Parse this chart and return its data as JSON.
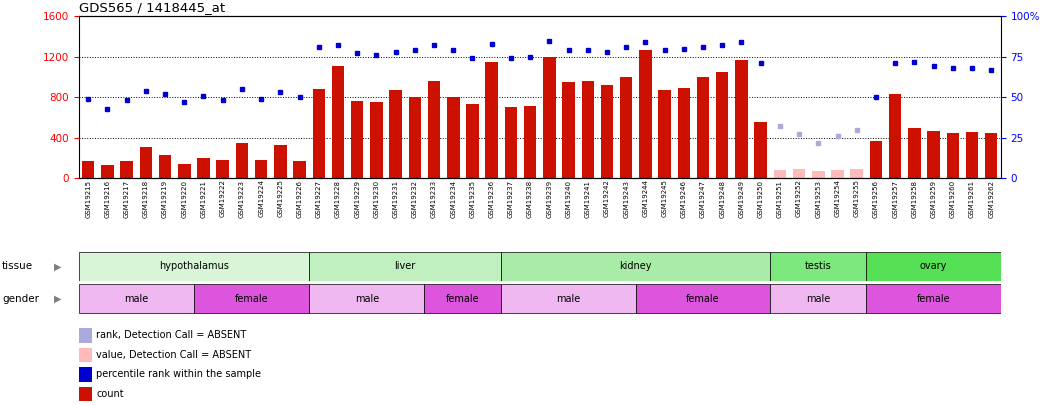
{
  "title": "GDS565 / 1418445_at",
  "samples": [
    "GSM19215",
    "GSM19216",
    "GSM19217",
    "GSM19218",
    "GSM19219",
    "GSM19220",
    "GSM19221",
    "GSM19222",
    "GSM19223",
    "GSM19224",
    "GSM19225",
    "GSM19226",
    "GSM19227",
    "GSM19228",
    "GSM19229",
    "GSM19230",
    "GSM19231",
    "GSM19232",
    "GSM19233",
    "GSM19234",
    "GSM19235",
    "GSM19236",
    "GSM19237",
    "GSM19238",
    "GSM19239",
    "GSM19240",
    "GSM19241",
    "GSM19242",
    "GSM19243",
    "GSM19244",
    "GSM19245",
    "GSM19246",
    "GSM19247",
    "GSM19248",
    "GSM19249",
    "GSM19250",
    "GSM19251",
    "GSM19252",
    "GSM19253",
    "GSM19254",
    "GSM19255",
    "GSM19256",
    "GSM19257",
    "GSM19258",
    "GSM19259",
    "GSM19260",
    "GSM19261",
    "GSM19262"
  ],
  "bar_values": [
    170,
    130,
    170,
    305,
    230,
    145,
    200,
    175,
    345,
    175,
    330,
    170,
    880,
    1110,
    760,
    750,
    870,
    800,
    960,
    800,
    730,
    1150,
    700,
    710,
    1200,
    950,
    960,
    920,
    1000,
    1270,
    870,
    890,
    1000,
    1050,
    1170,
    560,
    80,
    90,
    75,
    80,
    90,
    370,
    830,
    500,
    470,
    450,
    460,
    450
  ],
  "absent_bar": [
    false,
    false,
    false,
    false,
    false,
    false,
    false,
    false,
    false,
    false,
    false,
    false,
    false,
    false,
    false,
    false,
    false,
    false,
    false,
    false,
    false,
    false,
    false,
    false,
    false,
    false,
    false,
    false,
    false,
    false,
    false,
    false,
    false,
    false,
    false,
    false,
    true,
    true,
    true,
    true,
    true,
    false,
    false,
    false,
    false,
    false,
    false,
    false
  ],
  "rank_values": [
    49,
    43,
    48,
    54,
    52,
    47,
    51,
    48,
    55,
    49,
    53,
    50,
    81,
    82,
    77,
    76,
    78,
    79,
    82,
    79,
    74,
    83,
    74,
    75,
    85,
    79,
    79,
    78,
    81,
    84,
    79,
    80,
    81,
    82,
    84,
    71,
    32,
    27,
    22,
    26,
    30,
    50,
    71,
    72,
    69,
    68,
    68,
    67
  ],
  "absent_rank": [
    false,
    false,
    false,
    false,
    false,
    false,
    false,
    false,
    false,
    false,
    false,
    false,
    false,
    false,
    false,
    false,
    false,
    false,
    false,
    false,
    false,
    false,
    false,
    false,
    false,
    false,
    false,
    false,
    false,
    false,
    false,
    false,
    false,
    false,
    false,
    false,
    true,
    true,
    true,
    true,
    true,
    false,
    false,
    false,
    false,
    false,
    false,
    false
  ],
  "tissue_groups": [
    {
      "label": "hypothalamus",
      "start": 0,
      "end": 12,
      "color": "#d8f5d8"
    },
    {
      "label": "liver",
      "start": 12,
      "end": 22,
      "color": "#c0f0c0"
    },
    {
      "label": "kidney",
      "start": 22,
      "end": 36,
      "color": "#a8eca8"
    },
    {
      "label": "testis",
      "start": 36,
      "end": 41,
      "color": "#7de87d"
    },
    {
      "label": "ovary",
      "start": 41,
      "end": 48,
      "color": "#55e055"
    }
  ],
  "gender_groups": [
    {
      "label": "male",
      "start": 0,
      "end": 6,
      "color": "#f0b8f0"
    },
    {
      "label": "female",
      "start": 6,
      "end": 12,
      "color": "#dd55dd"
    },
    {
      "label": "male",
      "start": 12,
      "end": 18,
      "color": "#f0b8f0"
    },
    {
      "label": "female",
      "start": 18,
      "end": 22,
      "color": "#dd55dd"
    },
    {
      "label": "male",
      "start": 22,
      "end": 29,
      "color": "#f0b8f0"
    },
    {
      "label": "female",
      "start": 29,
      "end": 36,
      "color": "#dd55dd"
    },
    {
      "label": "male",
      "start": 36,
      "end": 41,
      "color": "#f0b8f0"
    },
    {
      "label": "female",
      "start": 41,
      "end": 48,
      "color": "#dd55dd"
    }
  ],
  "ylim_left": [
    0,
    1600
  ],
  "ylim_right": [
    0,
    100
  ],
  "yticks_left": [
    0,
    400,
    800,
    1200,
    1600
  ],
  "yticks_right_vals": [
    0,
    25,
    50,
    75,
    100
  ],
  "yticks_right_labels": [
    "0",
    "25",
    "50",
    "75",
    "100%"
  ],
  "bar_color": "#cc1100",
  "bar_absent_color": "#ffbbbb",
  "dot_color": "#0000cc",
  "dot_absent_color": "#aaaadd",
  "legend_items": [
    {
      "color": "#cc1100",
      "label": "count"
    },
    {
      "color": "#0000cc",
      "label": "percentile rank within the sample"
    },
    {
      "color": "#ffbbbb",
      "label": "value, Detection Call = ABSENT"
    },
    {
      "color": "#aaaadd",
      "label": "rank, Detection Call = ABSENT"
    }
  ]
}
